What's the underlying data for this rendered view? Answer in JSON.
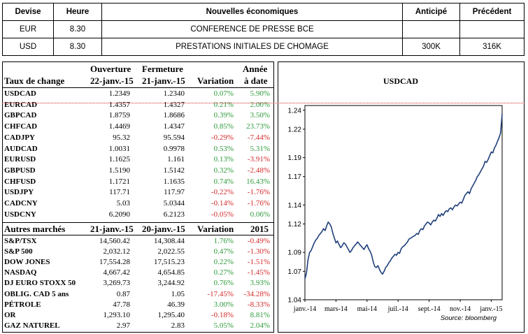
{
  "econ": {
    "headers": [
      "Devise",
      "Heure",
      "Nouvelles économiques",
      "Anticipé",
      "Précédent"
    ],
    "rows": [
      [
        "EUR",
        "8.30",
        "CONFERENCE DE PRESSE BCE",
        "",
        ""
      ],
      [
        "USD",
        "8.30",
        "PRESTATIONS INITIALES DE CHOMAGE",
        "300K",
        "316K"
      ]
    ]
  },
  "fx": {
    "header": {
      "h1_c1": "Ouverture",
      "h1_c2": "Fermeture",
      "h1_c4": "Année",
      "h2_c0": "Taux de change",
      "h2_c1": "22-janv.-15",
      "h2_c2": "21-janv.-15",
      "h2_c3": "Variation",
      "h2_c4": "à date"
    },
    "rows": [
      {
        "name": "USDCAD",
        "open": "1.2349",
        "close": "1.2340",
        "var": "0.07%",
        "ytd": "5.90%"
      },
      {
        "name": "EURCAD",
        "open": "1.4357",
        "close": "1.4327",
        "var": "0.21%",
        "ytd": "2.00%"
      },
      {
        "name": "GBPCAD",
        "open": "1.8759",
        "close": "1.8686",
        "var": "0.39%",
        "ytd": "3.50%"
      },
      {
        "name": "CHFCAD",
        "open": "1.4469",
        "close": "1.4347",
        "var": "0.85%",
        "ytd": "23.73%"
      },
      {
        "name": "CADJPY",
        "open": "95.32",
        "close": "95.594",
        "var": "-0.29%",
        "ytd": "-7.44%"
      },
      {
        "name": "AUDCAD",
        "open": "1.0031",
        "close": "0.9978",
        "var": "0.53%",
        "ytd": "5.31%"
      },
      {
        "name": "EURUSD",
        "open": "1.1625",
        "close": "1.161",
        "var": "0.13%",
        "ytd": "-3.91%"
      },
      {
        "name": "GBPUSD",
        "open": "1.5190",
        "close": "1.5142",
        "var": "0.32%",
        "ytd": "-2.48%"
      },
      {
        "name": "CHFUSD",
        "open": "1.1721",
        "close": "1.1635",
        "var": "0.74%",
        "ytd": "16.43%"
      },
      {
        "name": "USDJPY",
        "open": "117.71",
        "close": "117.97",
        "var": "-0.22%",
        "ytd": "-1.76%"
      },
      {
        "name": "CADCNY",
        "open": "5.03",
        "close": "5.0344",
        "var": "-0.14%",
        "ytd": "-1.76%"
      },
      {
        "name": "USDCNY",
        "open": "6.2090",
        "close": "6.2123",
        "var": "-0.05%",
        "ytd": "0.06%"
      }
    ]
  },
  "markets": {
    "header": {
      "c0": "Autres marchés",
      "c1": "21-janv.-15",
      "c2": "20-janv.-15",
      "c3": "Variation",
      "c4": "2015"
    },
    "rows": [
      {
        "name": "S&P/TSX",
        "open": "14,560.42",
        "close": "14,308.44",
        "var": "1.76%",
        "ytd": "-0.49%"
      },
      {
        "name": "S&P 500",
        "open": "2,032.12",
        "close": "2,022.55",
        "var": "0.47%",
        "ytd": "-1.30%"
      },
      {
        "name": "DOW JONES",
        "open": "17,554.28",
        "close": "17,515.23",
        "var": "0.22%",
        "ytd": "-1.51%"
      },
      {
        "name": "NASDAQ",
        "open": "4,667.42",
        "close": "4,654.85",
        "var": "0.27%",
        "ytd": "-1.45%"
      },
      {
        "name": "DJ EURO STOXX 50",
        "open": "3,269.73",
        "close": "3,244.92",
        "var": "0.76%",
        "ytd": "3.93%"
      },
      {
        "name": "OBLIG. CAD 5 ans",
        "open": "0.87",
        "close": "1.05",
        "var": "-17.45%",
        "ytd": "-34.28%"
      },
      {
        "name": "PÉTROLE",
        "open": "47.78",
        "close": "46.39",
        "var": "3.00%",
        "ytd": "-8.33%"
      },
      {
        "name": "OR",
        "open": "1,293.10",
        "close": "1,295.40",
        "var": "-0.18%",
        "ytd": "8.81%"
      },
      {
        "name": "GAZ NATUREL",
        "open": "2.97",
        "close": "2.83",
        "var": "5.05%",
        "ytd": "2.04%"
      }
    ]
  },
  "chart_data": {
    "type": "line",
    "title": "USDCAD",
    "source": "Source: bloomberg",
    "x_ticks": [
      "janv.-14",
      "mars-14",
      "mai-14",
      "juil.-14",
      "sept.-14",
      "nov.-14",
      "janv.-15"
    ],
    "y_ticks": [
      "1.04",
      "1.07",
      "1.09",
      "1.12",
      "1.14",
      "1.17",
      "1.19",
      "1.22",
      "1.24"
    ],
    "ylim": [
      1.04,
      1.245
    ],
    "xlim": [
      0,
      12.7
    ],
    "line_color": "#1f3f7a",
    "series": [
      {
        "x": [
          0,
          0.1,
          0.2,
          0.3,
          0.4,
          0.5,
          0.6,
          0.7,
          0.8,
          0.9,
          1.0,
          1.1,
          1.2,
          1.3,
          1.4,
          1.5,
          1.6,
          1.7,
          1.8,
          1.9,
          2.0,
          2.1,
          2.2,
          2.3,
          2.4,
          2.5,
          2.6,
          2.7,
          2.8,
          2.9,
          3.0,
          3.1,
          3.2,
          3.3,
          3.4,
          3.5,
          3.6,
          3.7,
          3.8,
          3.9,
          4.0,
          4.1,
          4.2,
          4.3,
          4.4,
          4.5,
          4.6,
          4.7,
          4.8,
          4.9,
          5.0,
          5.1,
          5.2,
          5.3,
          5.4,
          5.5,
          5.6,
          5.7,
          5.8,
          5.9,
          6.0,
          6.1,
          6.2,
          6.3,
          6.4,
          6.5,
          6.6,
          6.7,
          6.8,
          6.9,
          7.0,
          7.1,
          7.2,
          7.3,
          7.4,
          7.5,
          7.6,
          7.7,
          7.8,
          7.9,
          8.0,
          8.1,
          8.2,
          8.3,
          8.4,
          8.5,
          8.6,
          8.7,
          8.8,
          8.9,
          9.0,
          9.1,
          9.2,
          9.3,
          9.4,
          9.5,
          9.6,
          9.7,
          9.8,
          9.9,
          10.0,
          10.1,
          10.2,
          10.3,
          10.4,
          10.5,
          10.6,
          10.7,
          10.8,
          10.9,
          11.0,
          11.1,
          11.2,
          11.3,
          11.4,
          11.5,
          11.6,
          11.7,
          11.8,
          11.9,
          12.0,
          12.1,
          12.2,
          12.3,
          12.4,
          12.5,
          12.6,
          12.7
        ],
        "values": [
          1.062,
          1.068,
          1.082,
          1.09,
          1.092,
          1.096,
          1.1,
          1.103,
          1.105,
          1.108,
          1.11,
          1.112,
          1.115,
          1.113,
          1.118,
          1.122,
          1.12,
          1.117,
          1.11,
          1.105,
          1.1,
          1.102,
          1.098,
          1.095,
          1.097,
          1.1,
          1.099,
          1.096,
          1.093,
          1.09,
          1.092,
          1.095,
          1.097,
          1.099,
          1.101,
          1.099,
          1.097,
          1.095,
          1.093,
          1.096,
          1.098,
          1.094,
          1.091,
          1.087,
          1.08,
          1.075,
          1.074,
          1.076,
          1.072,
          1.069,
          1.067,
          1.07,
          1.074,
          1.076,
          1.079,
          1.081,
          1.084,
          1.086,
          1.088,
          1.087,
          1.09,
          1.089,
          1.094,
          1.096,
          1.097,
          1.099,
          1.101,
          1.104,
          1.105,
          1.106,
          1.107,
          1.108,
          1.11,
          1.109,
          1.113,
          1.115,
          1.114,
          1.118,
          1.12,
          1.122,
          1.121,
          1.119,
          1.122,
          1.124,
          1.123,
          1.126,
          1.13,
          1.128,
          1.131,
          1.129,
          1.132,
          1.134,
          1.133,
          1.136,
          1.137,
          1.135,
          1.138,
          1.14,
          1.139,
          1.141,
          1.143,
          1.142,
          1.146,
          1.15,
          1.152,
          1.154,
          1.152,
          1.157,
          1.16,
          1.163,
          1.166,
          1.17,
          1.172,
          1.175,
          1.178,
          1.181,
          1.186,
          1.185,
          1.188,
          1.192,
          1.196,
          1.195,
          1.2,
          1.203,
          1.207,
          1.211,
          1.216,
          1.236
        ]
      }
    ]
  }
}
